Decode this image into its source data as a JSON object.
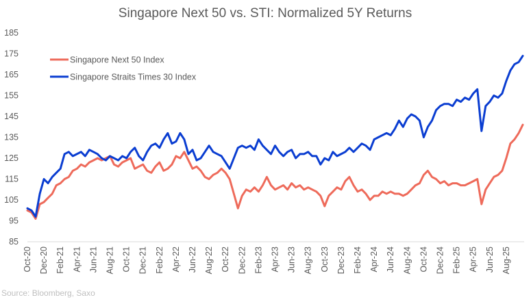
{
  "chart_data": {
    "type": "line",
    "title": "Singapore Next 50 vs. STI: Normalized 5Y Returns",
    "xlabel": "",
    "ylabel": "",
    "ylim": [
      85,
      185
    ],
    "yticks": [
      85,
      95,
      105,
      115,
      125,
      135,
      145,
      155,
      165,
      175,
      185
    ],
    "xtick_labels": [
      "Oct-20",
      "Dec-20",
      "Feb-21",
      "Apr-21",
      "Jun-21",
      "Aug-21",
      "Oct-21",
      "Dec-21",
      "Feb-22",
      "Apr-22",
      "Jun-22",
      "Aug-22",
      "Oct-22",
      "Dec-22",
      "Feb-23",
      "Apr-23",
      "Jun-23",
      "Aug-23",
      "Oct-23",
      "Dec-23",
      "Feb-24",
      "Apr-24",
      "Jun-24",
      "Aug-24",
      "Oct-24",
      "Dec-24",
      "Feb-25",
      "Apr-25",
      "Jun-25",
      "Aug-25"
    ],
    "x_unit": "months since Oct-20",
    "xlim": [
      0,
      60
    ],
    "grid": false,
    "legend_position": "top-left",
    "source": "Source: Bloomberg, Saxo",
    "series": [
      {
        "name": "Singapore Next 50 Index",
        "color": "#EE6A5A",
        "x": [
          0,
          0.5,
          1,
          1.5,
          2,
          2.5,
          3,
          3.5,
          4,
          4.5,
          5,
          5.5,
          6,
          6.5,
          7,
          7.5,
          8,
          8.5,
          9,
          9.5,
          10,
          10.5,
          11,
          11.5,
          12,
          12.5,
          13,
          13.5,
          14,
          14.5,
          15,
          15.5,
          16,
          16.5,
          17,
          17.5,
          18,
          18.5,
          19,
          19.5,
          20,
          20.5,
          21,
          21.5,
          22,
          22.5,
          23,
          23.5,
          24,
          24.5,
          25,
          25.5,
          26,
          26.5,
          27,
          27.5,
          28,
          28.5,
          29,
          29.5,
          30,
          30.5,
          31,
          31.5,
          32,
          32.5,
          33,
          33.5,
          34,
          34.5,
          35,
          35.5,
          36,
          36.5,
          37,
          37.5,
          38,
          38.5,
          39,
          39.5,
          40,
          40.5,
          41,
          41.5,
          42,
          42.5,
          43,
          43.5,
          44,
          44.5,
          45,
          45.5,
          46,
          46.5,
          47,
          47.5,
          48,
          48.5,
          49,
          49.5,
          50,
          50.5,
          51,
          51.5,
          52,
          52.5,
          53,
          53.5,
          54,
          54.5,
          55,
          55.5,
          56,
          56.5,
          57,
          57.5,
          58,
          58.5,
          59,
          59.5,
          60
        ],
        "values": [
          100,
          99,
          96,
          103,
          104,
          106,
          108,
          112,
          113,
          115,
          116,
          119,
          120,
          122,
          121,
          123,
          124,
          125,
          124,
          125,
          126,
          122,
          121,
          123,
          124,
          125,
          120,
          121,
          122,
          119,
          118,
          121,
          123,
          119,
          120,
          122,
          126,
          125,
          128,
          124,
          120,
          121,
          119,
          116,
          115,
          117,
          118,
          120,
          118,
          115,
          108,
          101,
          107,
          110,
          109,
          111,
          109,
          112,
          116,
          112,
          110,
          111,
          112,
          110,
          113,
          111,
          112,
          110,
          111,
          110,
          109,
          107,
          102,
          107,
          109,
          111,
          110,
          114,
          116,
          112,
          109,
          110,
          108,
          105,
          107,
          107,
          109,
          108,
          109,
          108,
          108,
          107,
          108,
          110,
          112,
          113,
          117,
          119,
          116,
          115,
          113,
          114,
          112,
          113,
          113,
          112,
          112,
          113,
          114,
          115,
          103,
          110,
          113,
          116,
          117,
          119,
          125,
          132,
          134,
          137,
          141
        ]
      },
      {
        "name": "Singapore Straits Times 30 Index",
        "color": "#0A3DD1",
        "x": [
          0,
          0.5,
          1,
          1.5,
          2,
          2.5,
          3,
          3.5,
          4,
          4.5,
          5,
          5.5,
          6,
          6.5,
          7,
          7.5,
          8,
          8.5,
          9,
          9.5,
          10,
          10.5,
          11,
          11.5,
          12,
          12.5,
          13,
          13.5,
          14,
          14.5,
          15,
          15.5,
          16,
          16.5,
          17,
          17.5,
          18,
          18.5,
          19,
          19.5,
          20,
          20.5,
          21,
          21.5,
          22,
          22.5,
          23,
          23.5,
          24,
          24.5,
          25,
          25.5,
          26,
          26.5,
          27,
          27.5,
          28,
          28.5,
          29,
          29.5,
          30,
          30.5,
          31,
          31.5,
          32,
          32.5,
          33,
          33.5,
          34,
          34.5,
          35,
          35.5,
          36,
          36.5,
          37,
          37.5,
          38,
          38.5,
          39,
          39.5,
          40,
          40.5,
          41,
          41.5,
          42,
          42.5,
          43,
          43.5,
          44,
          44.5,
          45,
          45.5,
          46,
          46.5,
          47,
          47.5,
          48,
          48.5,
          49,
          49.5,
          50,
          50.5,
          51,
          51.5,
          52,
          52.5,
          53,
          53.5,
          54,
          54.5,
          55,
          55.5,
          56,
          56.5,
          57,
          57.5,
          58,
          58.5,
          59,
          59.5,
          60
        ],
        "values": [
          101,
          100,
          97,
          108,
          115,
          113,
          116,
          118,
          120,
          127,
          128,
          126,
          127,
          128,
          126,
          129,
          128,
          127,
          125,
          124,
          126,
          125,
          124,
          126,
          125,
          128,
          130,
          126,
          124,
          128,
          131,
          132,
          130,
          134,
          137,
          132,
          133,
          137,
          134,
          127,
          129,
          124,
          125,
          128,
          131,
          128,
          127,
          126,
          123,
          120,
          125,
          130,
          131,
          130,
          131,
          129,
          134,
          131,
          129,
          127,
          131,
          128,
          126,
          128,
          129,
          125,
          127,
          127,
          128,
          126,
          126,
          122,
          125,
          124,
          128,
          126,
          127,
          128,
          130,
          128,
          130,
          132,
          131,
          129,
          134,
          135,
          136,
          137,
          136,
          139,
          143,
          140,
          144,
          146,
          145,
          143,
          135,
          140,
          143,
          148,
          150,
          151,
          151,
          150,
          153,
          152,
          154,
          153,
          156,
          158,
          138,
          150,
          152,
          155,
          154,
          156,
          162,
          167,
          170,
          171,
          174
        ]
      }
    ]
  }
}
